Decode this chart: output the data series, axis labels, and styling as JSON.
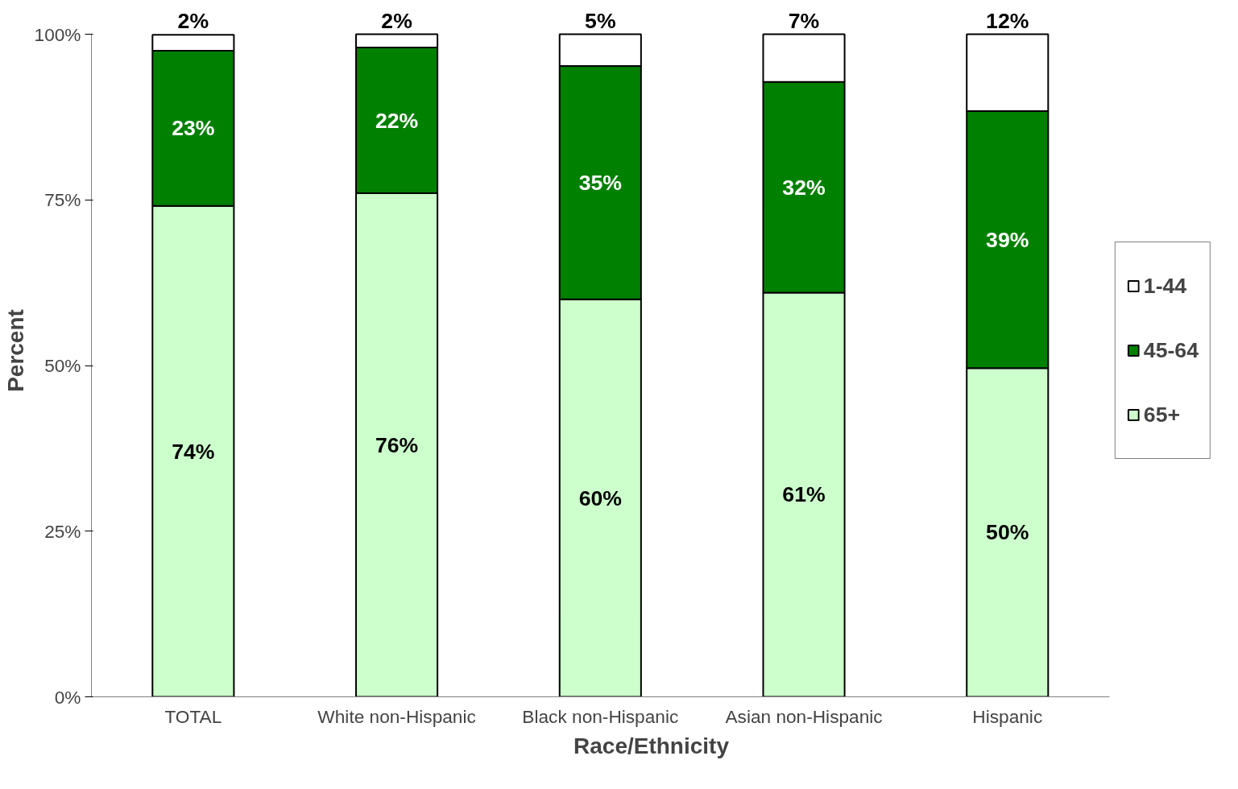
{
  "chart_data": {
    "type": "bar",
    "stacked": true,
    "xlabel": "Race/Ethnicity",
    "ylabel": "Percent",
    "categories": [
      "TOTAL",
      "White non-Hispanic",
      "Black non-Hispanic",
      "Asian non-Hispanic",
      "Hispanic"
    ],
    "series": [
      {
        "name": "65+",
        "color": "#ccffcc",
        "values": [
          74.1,
          76,
          60,
          61,
          49.6
        ],
        "value_labels": [
          "74%",
          "76%",
          "60%",
          "61%",
          "50%"
        ]
      },
      {
        "name": "45-64",
        "color": "#008000",
        "values": [
          23.4,
          22,
          35.2,
          31.8,
          38.8
        ],
        "value_labels": [
          "23%",
          "22%",
          "35%",
          "32%",
          "39%"
        ]
      },
      {
        "name": "1-44",
        "color": "#ffffff",
        "values": [
          2.4,
          2,
          4.8,
          7.2,
          11.6
        ],
        "value_labels": [
          "2%",
          "2%",
          "5%",
          "7%",
          "12%"
        ]
      }
    ],
    "ylim": [
      0,
      100
    ],
    "yticks": [
      {
        "value": 0,
        "label": "0%"
      },
      {
        "value": 25,
        "label": "25%"
      },
      {
        "value": 50,
        "label": "50%"
      },
      {
        "value": 75,
        "label": "75%"
      },
      {
        "value": 100,
        "label": "100%"
      }
    ],
    "grid": false,
    "legend": "right"
  }
}
